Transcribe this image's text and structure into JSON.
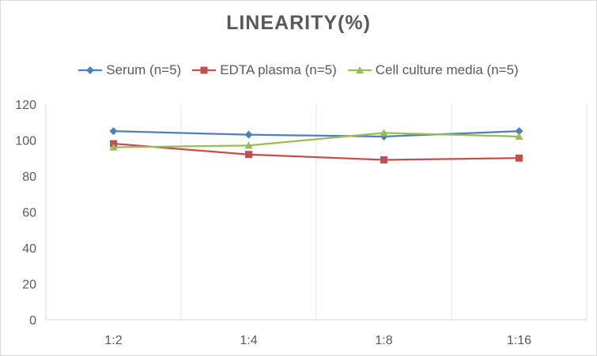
{
  "chart_data": {
    "type": "line",
    "title": "LINEARITY(%)",
    "xlabel": "",
    "ylabel": "",
    "categories": [
      "1:2",
      "1:4",
      "1:8",
      "1:16"
    ],
    "ylim": [
      0,
      120
    ],
    "yticks": [
      0,
      20,
      40,
      60,
      80,
      100,
      120
    ],
    "grid": "vertical",
    "legend": "top",
    "series": [
      {
        "name": "Serum (n=5)",
        "values": [
          105,
          103,
          102,
          105
        ],
        "color": "#4f7fb8",
        "marker": "diamond"
      },
      {
        "name": "EDTA plasma (n=5)",
        "values": [
          98,
          92,
          89,
          90
        ],
        "color": "#c0504d",
        "marker": "square"
      },
      {
        "name": "Cell culture media (n=5)",
        "values": [
          96,
          97,
          104,
          102
        ],
        "color": "#9bbb59",
        "marker": "triangle"
      }
    ]
  }
}
